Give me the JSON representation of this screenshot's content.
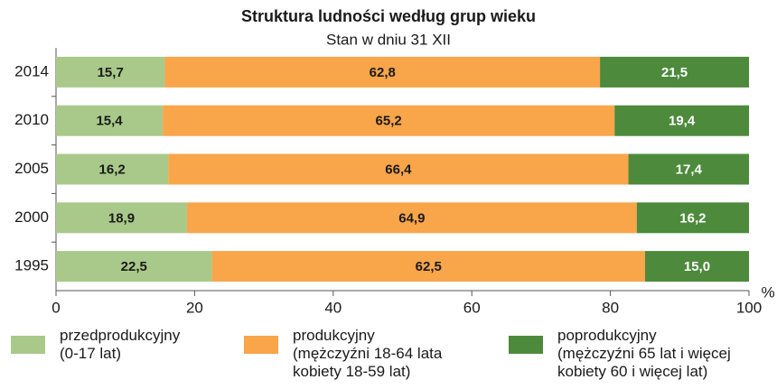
{
  "chart_data": {
    "type": "stacked_bar_horizontal",
    "title": "Struktura  ludności według  grup  wieku",
    "subtitle": "Stan  w  dniu  31  XII",
    "x_unit": "%",
    "categories": [
      "2014",
      "2010",
      "2005",
      "2000",
      "1995"
    ],
    "series": [
      {
        "name": "przedprodukcyjny\n(0-17 lat)",
        "color": "#a9c98a",
        "label_color": "#1a1a1a",
        "values": [
          15.7,
          15.4,
          16.2,
          18.9,
          22.5
        ],
        "value_labels": [
          "15,7",
          "15,4",
          "16,2",
          "18,9",
          "22,5"
        ]
      },
      {
        "name": "produkcyjny\n(mężczyźni 18-64 lata\nkobiety 18-59 lat)",
        "color": "#f9a54a",
        "label_color": "#1a1a1a",
        "values": [
          62.8,
          65.2,
          66.4,
          64.9,
          62.5
        ],
        "value_labels": [
          "62,8",
          "65,2",
          "66,4",
          "64,9",
          "62,5"
        ]
      },
      {
        "name": "poprodukcyjny\n(mężczyźni 65 lat i więcej\nkobiety 60 i więcej lat)",
        "color": "#4d8a3c",
        "label_color": "#ffffff",
        "values": [
          21.5,
          19.4,
          17.4,
          16.2,
          15.0
        ],
        "value_labels": [
          "21,5",
          "19,4",
          "17,4",
          "16,2",
          "15,0"
        ]
      }
    ],
    "xlim": [
      0,
      100
    ],
    "xticks": [
      0,
      20,
      40,
      60,
      80,
      100
    ]
  }
}
